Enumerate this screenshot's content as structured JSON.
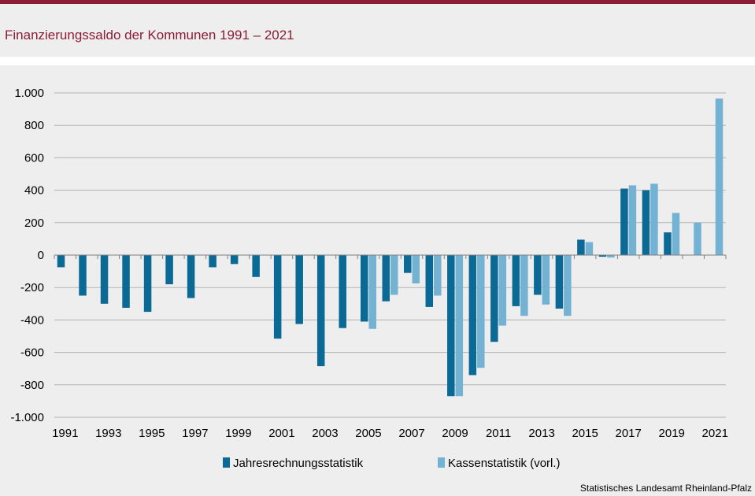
{
  "title": "Finanzierungssaldo der Kommunen 1991 – 2021",
  "source": "Statistisches Landesamt  Rheinland-Pfalz",
  "chart_data": {
    "type": "bar",
    "categories": [
      "1991",
      "1992",
      "1993",
      "1994",
      "1995",
      "1996",
      "1997",
      "1998",
      "1999",
      "2000",
      "2001",
      "2002",
      "2003",
      "2004",
      "2005",
      "2006",
      "2007",
      "2008",
      "2009",
      "2010",
      "2011",
      "2012",
      "2013",
      "2014",
      "2015",
      "2016",
      "2017",
      "2018",
      "2019",
      "2020",
      "2021"
    ],
    "x_tick_labels": [
      "1991",
      "1993",
      "1995",
      "1997",
      "1999",
      "2001",
      "2003",
      "2005",
      "2007",
      "2009",
      "2011",
      "2013",
      "2015",
      "2017",
      "2019",
      "2021"
    ],
    "y_tick_labels": [
      "1.000",
      "800",
      "600",
      "400",
      "200",
      "0",
      "-200",
      "-400",
      "-600",
      "-800",
      "-1.000"
    ],
    "y_ticks": [
      1000,
      800,
      600,
      400,
      200,
      0,
      -200,
      -400,
      -600,
      -800,
      -1000
    ],
    "ylim": [
      -1000,
      1000
    ],
    "grid": true,
    "legend_position": "bottom",
    "series": [
      {
        "name": "Jahresrechnungsstatistik",
        "color": "#0b6a95",
        "values": [
          -75,
          -250,
          -300,
          -325,
          -350,
          -180,
          -265,
          -75,
          -55,
          -135,
          -515,
          -425,
          -685,
          -450,
          -410,
          -285,
          -110,
          -320,
          -870,
          -740,
          -535,
          -315,
          -245,
          -330,
          95,
          -10,
          410,
          400,
          140,
          null,
          null
        ]
      },
      {
        "name": "Kassenstatistik (vorl.)",
        "color": "#74b2d4",
        "values": [
          null,
          null,
          null,
          null,
          null,
          null,
          null,
          null,
          null,
          null,
          null,
          null,
          null,
          null,
          -455,
          -245,
          -175,
          -250,
          -870,
          -695,
          -435,
          -375,
          -305,
          -375,
          80,
          -15,
          430,
          440,
          260,
          200,
          965
        ]
      }
    ]
  }
}
